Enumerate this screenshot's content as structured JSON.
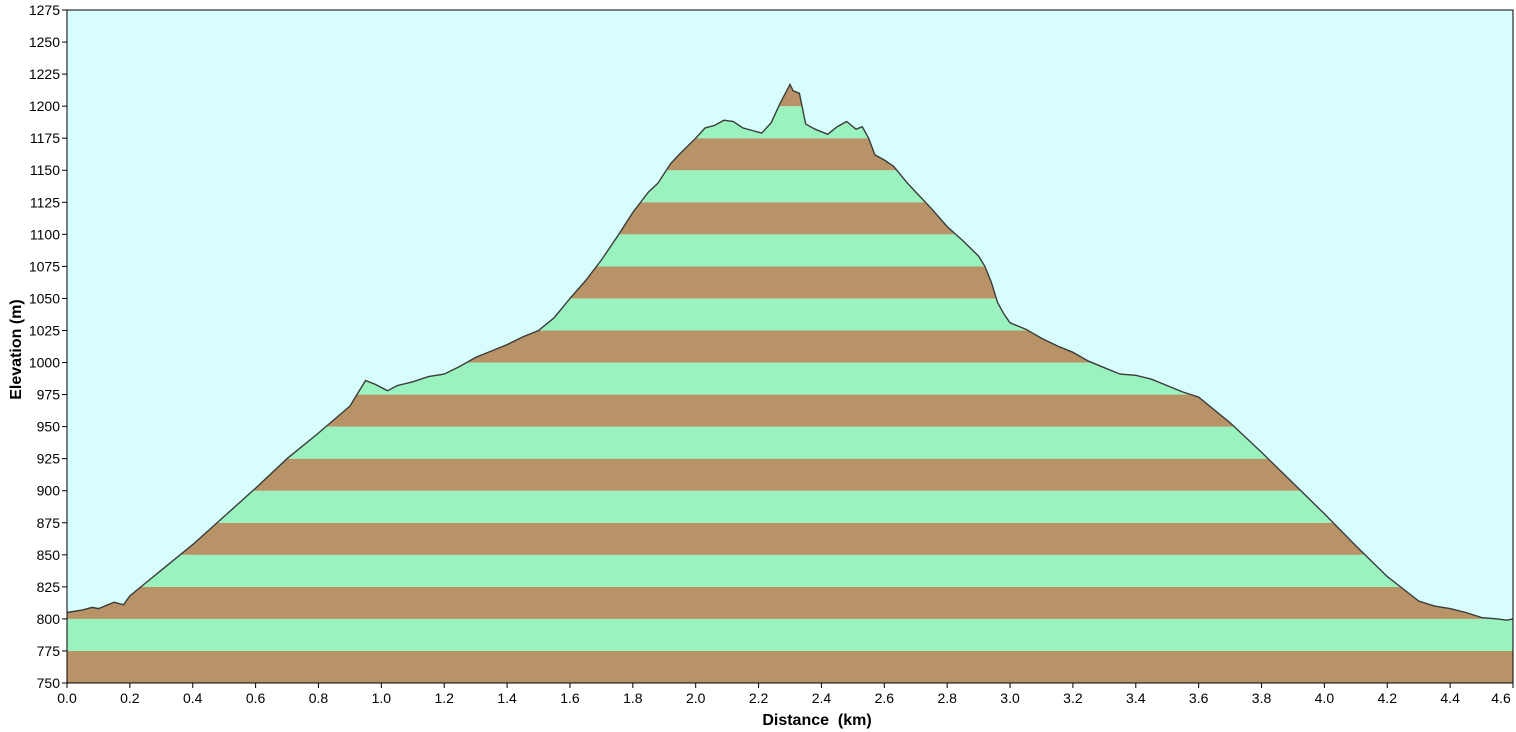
{
  "chart_data": {
    "type": "area",
    "title": "",
    "xlabel": "Distance  (km)",
    "ylabel": "Elevation (m)",
    "xlim": [
      0,
      4.6
    ],
    "ylim": [
      750,
      1275
    ],
    "x_ticks": [
      0.0,
      0.2,
      0.4,
      0.6,
      0.8,
      1.0,
      1.2,
      1.4,
      1.6,
      1.8,
      2.0,
      2.2,
      2.4,
      2.6,
      2.8,
      3.0,
      3.2,
      3.4,
      3.6,
      3.8,
      4.0,
      4.2,
      4.4,
      4.6
    ],
    "x_tick_labels": [
      "0.0",
      "0.2",
      "0.4",
      "0.6",
      "0.8",
      "1.0",
      "1.2",
      "1.4",
      "1.6",
      "1.8",
      "2.0",
      "2.2",
      "2.4",
      "2.6",
      "2.8",
      "3.0",
      "3.2",
      "3.4",
      "3.6",
      "3.8",
      "4.0",
      "4.2",
      "4.4",
      "4.6"
    ],
    "y_ticks": [
      750,
      775,
      800,
      825,
      850,
      875,
      900,
      925,
      950,
      975,
      1000,
      1025,
      1050,
      1075,
      1100,
      1125,
      1150,
      1175,
      1200,
      1225,
      1250,
      1275
    ],
    "y_tick_labels": [
      "750",
      "775",
      "800",
      "825",
      "850",
      "875",
      "900",
      "925",
      "950",
      "975",
      "1000",
      "1025",
      "1050",
      "1075",
      "1100",
      "1125",
      "1150",
      "1175",
      "1200",
      "1225",
      "1250",
      "1275"
    ],
    "grid": false,
    "legend": "none",
    "band_interval": 25,
    "colors": {
      "plot_background": "#d8fdfd",
      "band_light": "#9af2bf",
      "band_dark": "#b89367",
      "profile_line": "#3b3b3b",
      "axis": "#000000"
    },
    "series": [
      {
        "x": [
          0.0,
          0.05,
          0.08,
          0.1,
          0.15,
          0.18,
          0.2,
          0.25,
          0.3,
          0.4,
          0.5,
          0.6,
          0.7,
          0.8,
          0.9,
          0.93,
          0.95,
          0.98,
          1.02,
          1.05,
          1.1,
          1.15,
          1.2,
          1.25,
          1.3,
          1.35,
          1.4,
          1.45,
          1.5,
          1.55,
          1.6,
          1.65,
          1.7,
          1.75,
          1.8,
          1.85,
          1.88,
          1.92,
          1.95,
          2.0,
          2.03,
          2.06,
          2.09,
          2.12,
          2.15,
          2.18,
          2.21,
          2.24,
          2.27,
          2.3,
          2.31,
          2.33,
          2.35,
          2.38,
          2.42,
          2.45,
          2.48,
          2.51,
          2.53,
          2.55,
          2.57,
          2.6,
          2.63,
          2.67,
          2.7,
          2.75,
          2.8,
          2.85,
          2.9,
          2.92,
          2.94,
          2.96,
          2.98,
          3.0,
          3.05,
          3.1,
          3.15,
          3.2,
          3.25,
          3.3,
          3.35,
          3.4,
          3.45,
          3.5,
          3.55,
          3.6,
          3.7,
          3.8,
          3.9,
          4.0,
          4.1,
          4.2,
          4.3,
          4.35,
          4.4,
          4.45,
          4.5,
          4.55,
          4.58,
          4.6
        ],
        "y": [
          805,
          807,
          809,
          808,
          813,
          811,
          818,
          828,
          838,
          858,
          880,
          902,
          925,
          945,
          966,
          978,
          986,
          983,
          978,
          982,
          985,
          989,
          991,
          997,
          1004,
          1009,
          1014,
          1020,
          1025,
          1035,
          1050,
          1064,
          1080,
          1098,
          1117,
          1133,
          1140,
          1155,
          1163,
          1175,
          1183,
          1185,
          1189,
          1188,
          1183,
          1181,
          1179,
          1187,
          1203,
          1217,
          1212,
          1210,
          1186,
          1182,
          1178,
          1184,
          1188,
          1182,
          1184,
          1175,
          1162,
          1158,
          1153,
          1141,
          1133,
          1120,
          1106,
          1095,
          1083,
          1075,
          1063,
          1047,
          1038,
          1031,
          1026,
          1019,
          1013,
          1008,
          1001,
          996,
          991,
          990,
          987,
          982,
          977,
          973,
          953,
          930,
          906,
          882,
          857,
          833,
          814,
          810,
          808,
          805,
          801,
          800,
          799,
          800
        ]
      }
    ]
  }
}
